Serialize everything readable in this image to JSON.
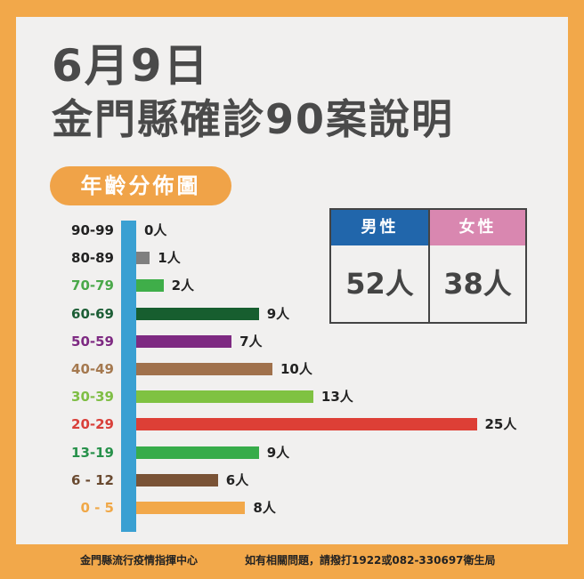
{
  "header": {
    "date": "6月9日",
    "title": "金門縣確診90案說明"
  },
  "section_label": "年齡分佈圖",
  "colors": {
    "frame": "#f2a84a",
    "panel": "#f1f0ef",
    "axis": "#3aa0d2",
    "male": "#2166ab",
    "female": "#d987b0",
    "title_text": "#4a4a4a"
  },
  "gender": {
    "male": {
      "label": "男性",
      "value": "52人"
    },
    "female": {
      "label": "女性",
      "value": "38人"
    }
  },
  "rows": [
    {
      "label": "90-99",
      "value_label": "0人",
      "color": "#222222",
      "bar_color": "#888888"
    },
    {
      "label": "80-89",
      "value_label": "1人",
      "color": "#222222",
      "bar_color": "#7f7f7f"
    },
    {
      "label": "70-79",
      "value_label": "2人",
      "color": "#4aa84a",
      "bar_color": "#3fae49"
    },
    {
      "label": "60-69",
      "value_label": "9人",
      "color": "#1d5e36",
      "bar_color": "#175e2f"
    },
    {
      "label": "50-59",
      "value_label": "7人",
      "color": "#7e2a82",
      "bar_color": "#7e2a82"
    },
    {
      "label": "40-49",
      "value_label": "10人",
      "color": "#a5794f",
      "bar_color": "#a0714c"
    },
    {
      "label": "30-39",
      "value_label": "13人",
      "color": "#7fbe45",
      "bar_color": "#7fc242"
    },
    {
      "label": "20-29",
      "value_label": "25人",
      "color": "#d9403a",
      "bar_color": "#dd3f36"
    },
    {
      "label": "13-19",
      "value_label": "9人",
      "color": "#27914a",
      "bar_color": "#37ac4a"
    },
    {
      "label": "6 - 12",
      "value_label": "6人",
      "color": "#6a4a30",
      "bar_color": "#7a5336"
    },
    {
      "label": "0 - 5",
      "value_label": "8人",
      "color": "#f0a848",
      "bar_color": "#f2a84a"
    }
  ],
  "chart_data": {
    "type": "bar",
    "orientation": "horizontal",
    "title": "年齡分佈圖",
    "categories": [
      "90-99",
      "80-89",
      "70-79",
      "60-69",
      "50-59",
      "40-49",
      "30-39",
      "20-29",
      "13-19",
      "6-12",
      "0-5"
    ],
    "values": [
      0,
      1,
      2,
      9,
      7,
      10,
      13,
      25,
      9,
      6,
      8
    ],
    "unit": "人",
    "total": 90,
    "gender_breakdown": {
      "男性": 52,
      "女性": 38
    },
    "grid": false,
    "legend": "none"
  },
  "footer": {
    "left": "金門縣流行疫情指揮中心",
    "right": "如有相關問題，請撥打1922或082-330697衛生局"
  }
}
